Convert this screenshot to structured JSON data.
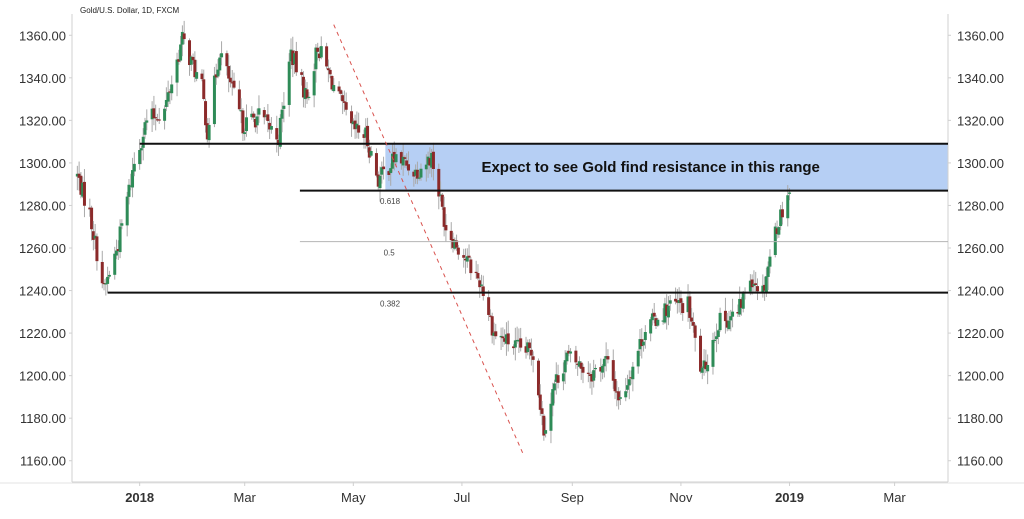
{
  "chart_data": {
    "type": "candlestick",
    "title": "Gold/U.S. Dollar, 1D, FXCM",
    "xlabel": "",
    "ylabel": "",
    "ylim": [
      1150,
      1370
    ],
    "y_ticks": [
      1160,
      1180,
      1200,
      1220,
      1240,
      1260,
      1280,
      1300,
      1320,
      1340,
      1360
    ],
    "y_tick_labels": [
      "1160.00",
      "1180.00",
      "1200.00",
      "1220.00",
      "1240.00",
      "1260.00",
      "1280.00",
      "1300.00",
      "1320.00",
      "1340.00",
      "1360.00"
    ],
    "x_range": [
      "2017-11-24",
      "2019-03-31"
    ],
    "x_ticks": [
      {
        "date": "2018-01-01",
        "label": "2018",
        "bold": true
      },
      {
        "date": "2018-03-01",
        "label": "Mar",
        "bold": false
      },
      {
        "date": "2018-05-01",
        "label": "May",
        "bold": false
      },
      {
        "date": "2018-07-01",
        "label": "Jul",
        "bold": false
      },
      {
        "date": "2018-09-01",
        "label": "Sep",
        "bold": false
      },
      {
        "date": "2018-11-01",
        "label": "Nov",
        "bold": false
      },
      {
        "date": "2019-01-01",
        "label": "2019",
        "bold": true
      },
      {
        "date": "2019-03-01",
        "label": "Mar",
        "bold": false
      }
    ],
    "price_path": [
      {
        "date": "2017-11-27",
        "close": 1294
      },
      {
        "date": "2017-12-04",
        "close": 1276
      },
      {
        "date": "2017-12-12",
        "close": 1240
      },
      {
        "date": "2017-12-20",
        "close": 1262
      },
      {
        "date": "2017-12-29",
        "close": 1300
      },
      {
        "date": "2018-01-05",
        "close": 1320
      },
      {
        "date": "2018-01-15",
        "close": 1325
      },
      {
        "date": "2018-01-25",
        "close": 1358
      },
      {
        "date": "2018-02-05",
        "close": 1335
      },
      {
        "date": "2018-02-08",
        "close": 1315
      },
      {
        "date": "2018-02-15",
        "close": 1353
      },
      {
        "date": "2018-02-28",
        "close": 1318
      },
      {
        "date": "2018-03-09",
        "close": 1322
      },
      {
        "date": "2018-03-20",
        "close": 1312
      },
      {
        "date": "2018-03-27",
        "close": 1352
      },
      {
        "date": "2018-04-05",
        "close": 1330
      },
      {
        "date": "2018-04-11",
        "close": 1355
      },
      {
        "date": "2018-04-20",
        "close": 1336
      },
      {
        "date": "2018-04-30",
        "close": 1316
      },
      {
        "date": "2018-05-08",
        "close": 1313
      },
      {
        "date": "2018-05-15",
        "close": 1292
      },
      {
        "date": "2018-05-25",
        "close": 1303
      },
      {
        "date": "2018-06-05",
        "close": 1296
      },
      {
        "date": "2018-06-14",
        "close": 1303
      },
      {
        "date": "2018-06-22",
        "close": 1270
      },
      {
        "date": "2018-07-03",
        "close": 1255
      },
      {
        "date": "2018-07-12",
        "close": 1243
      },
      {
        "date": "2018-07-19",
        "close": 1220
      },
      {
        "date": "2018-08-01",
        "close": 1213
      },
      {
        "date": "2018-08-10",
        "close": 1211
      },
      {
        "date": "2018-08-16",
        "close": 1175
      },
      {
        "date": "2018-08-22",
        "close": 1196
      },
      {
        "date": "2018-08-29",
        "close": 1209
      },
      {
        "date": "2018-09-12",
        "close": 1201
      },
      {
        "date": "2018-09-20",
        "close": 1207
      },
      {
        "date": "2018-09-28",
        "close": 1188
      },
      {
        "date": "2018-10-12",
        "close": 1222
      },
      {
        "date": "2018-10-26",
        "close": 1233
      },
      {
        "date": "2018-11-05",
        "close": 1233
      },
      {
        "date": "2018-11-13",
        "close": 1200
      },
      {
        "date": "2018-11-22",
        "close": 1225
      },
      {
        "date": "2018-12-03",
        "close": 1229
      },
      {
        "date": "2018-12-10",
        "close": 1247
      },
      {
        "date": "2018-12-17",
        "close": 1240
      },
      {
        "date": "2018-12-24",
        "close": 1268
      },
      {
        "date": "2019-01-01",
        "close": 1288
      }
    ],
    "horizontal_levels": [
      {
        "price": 1309,
        "from": "2018-01-01",
        "to": "2019-03-31",
        "style": "thick"
      },
      {
        "price": 1287,
        "from": "2018-04-01",
        "to": "2019-03-31",
        "style": "thick"
      },
      {
        "price": 1263,
        "from": "2018-04-01",
        "to": "2019-03-31",
        "style": "thin"
      },
      {
        "price": 1239,
        "from": "2017-12-14",
        "to": "2019-03-31",
        "style": "thick"
      }
    ],
    "fib_labels": [
      {
        "text": "0.618",
        "date": "2018-05-16",
        "price": 1282
      },
      {
        "text": "0.5",
        "date": "2018-05-18",
        "price": 1258
      },
      {
        "text": "0.382",
        "date": "2018-05-16",
        "price": 1234
      }
    ],
    "trendline": {
      "from": {
        "date": "2018-04-20",
        "price": 1365
      },
      "to": {
        "date": "2018-08-05",
        "price": 1162
      }
    },
    "resistance_zone": {
      "from_date": "2018-05-19",
      "to_date": "2019-03-31",
      "low": 1287,
      "high": 1309
    },
    "annotation": {
      "text": "Expect to see Gold find resistance in this range",
      "date": "2018-10-15",
      "price": 1298
    }
  },
  "colors": {
    "up": "#2e8b57",
    "down": "#8b2a2a",
    "wick": "#a9a9a9",
    "zone_fill": "#a9c7f2",
    "line": "#111111",
    "thin_line": "#b5b5b5",
    "trendline": "#d9534f",
    "axis": "#d0d0d0"
  }
}
